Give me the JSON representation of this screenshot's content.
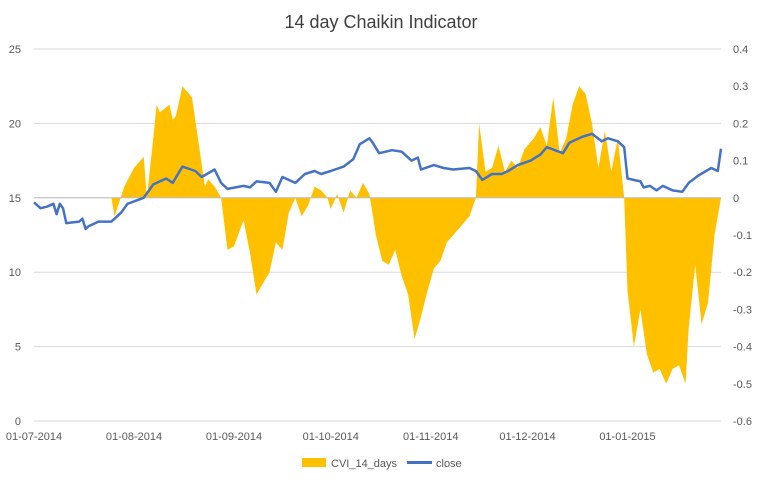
{
  "chart_data": {
    "type": "area",
    "title": "14 day Chaikin Indicator",
    "x_ticks": [
      "01-07-2014",
      "01-08-2014",
      "01-09-2014",
      "01-10-2014",
      "01-11-2014",
      "01-12-2014",
      "01-01-2015"
    ],
    "xlim": [
      "01-07-2014",
      "30-01-2015"
    ],
    "y_left": {
      "ticks": [
        0,
        5,
        10,
        15,
        20,
        25
      ],
      "ylim": [
        0,
        25
      ]
    },
    "y_right": {
      "ticks": [
        0.4,
        0.3,
        0.2,
        0.1,
        0,
        -0.1,
        -0.2,
        -0.3,
        -0.4,
        -0.5,
        -0.6
      ],
      "ylim": [
        -0.6,
        0.4
      ]
    },
    "gridlines": true,
    "legend_position": "bottom",
    "series": [
      {
        "name": "CVI_14_days",
        "type": "area",
        "axis": "right",
        "color": "#FFC000",
        "points": [
          [
            "2014-07-25",
            0
          ],
          [
            "2014-07-26",
            -0.05
          ],
          [
            "2014-07-29",
            0.03
          ],
          [
            "2014-08-01",
            0.08
          ],
          [
            "2014-08-04",
            0.11
          ],
          [
            "2014-08-05",
            0
          ],
          [
            "2014-08-07",
            0.16
          ],
          [
            "2014-08-08",
            0.25
          ],
          [
            "2014-08-09",
            0.23
          ],
          [
            "2014-08-12",
            0.25
          ],
          [
            "2014-08-13",
            0.21
          ],
          [
            "2014-08-14",
            0.22
          ],
          [
            "2014-08-16",
            0.3
          ],
          [
            "2014-08-19",
            0.27
          ],
          [
            "2014-08-21",
            0.15
          ],
          [
            "2014-08-23",
            0.03
          ],
          [
            "2014-08-24",
            0.05
          ],
          [
            "2014-08-26",
            0.03
          ],
          [
            "2014-08-28",
            0
          ],
          [
            "2014-08-30",
            -0.14
          ],
          [
            "2014-09-01",
            -0.13
          ],
          [
            "2014-09-04",
            -0.06
          ],
          [
            "2014-09-06",
            -0.15
          ],
          [
            "2014-09-08",
            -0.26
          ],
          [
            "2014-09-12",
            -0.2
          ],
          [
            "2014-09-14",
            -0.12
          ],
          [
            "2014-09-16",
            -0.14
          ],
          [
            "2014-09-18",
            -0.04
          ],
          [
            "2014-09-20",
            0
          ],
          [
            "2014-09-22",
            -0.05
          ],
          [
            "2014-09-24",
            -0.02
          ],
          [
            "2014-09-26",
            0.03
          ],
          [
            "2014-09-28",
            0.02
          ],
          [
            "2014-09-30",
            0
          ],
          [
            "2014-10-01",
            -0.03
          ],
          [
            "2014-10-03",
            0.01
          ],
          [
            "2014-10-05",
            -0.04
          ],
          [
            "2014-10-07",
            0.02
          ],
          [
            "2014-10-09",
            0
          ],
          [
            "2014-10-11",
            0.04
          ],
          [
            "2014-10-13",
            0.01
          ],
          [
            "2014-10-15",
            -0.1
          ],
          [
            "2014-10-17",
            -0.17
          ],
          [
            "2014-10-19",
            -0.18
          ],
          [
            "2014-10-21",
            -0.14
          ],
          [
            "2014-10-23",
            -0.21
          ],
          [
            "2014-10-25",
            -0.26
          ],
          [
            "2014-10-27",
            -0.38
          ],
          [
            "2014-10-29",
            -0.32
          ],
          [
            "2014-10-31",
            -0.25
          ],
          [
            "2014-11-02",
            -0.19
          ],
          [
            "2014-11-04",
            -0.17
          ],
          [
            "2014-11-06",
            -0.12
          ],
          [
            "2014-11-08",
            -0.1
          ],
          [
            "2014-11-10",
            -0.08
          ],
          [
            "2014-11-13",
            -0.05
          ],
          [
            "2014-11-15",
            0
          ],
          [
            "2014-11-16",
            0.2
          ],
          [
            "2014-11-18",
            0.07
          ],
          [
            "2014-11-20",
            0.08
          ],
          [
            "2014-11-22",
            0.14
          ],
          [
            "2014-11-24",
            0.07
          ],
          [
            "2014-11-26",
            0.1
          ],
          [
            "2014-11-28",
            0.08
          ],
          [
            "2014-11-30",
            0.13
          ],
          [
            "2014-12-03",
            0.16
          ],
          [
            "2014-12-05",
            0.19
          ],
          [
            "2014-12-07",
            0.14
          ],
          [
            "2014-12-09",
            0.27
          ],
          [
            "2014-12-11",
            0.12
          ],
          [
            "2014-12-13",
            0.16
          ],
          [
            "2014-12-15",
            0.25
          ],
          [
            "2014-12-17",
            0.3
          ],
          [
            "2014-12-19",
            0.28
          ],
          [
            "2014-12-21",
            0.2
          ],
          [
            "2014-12-23",
            0.08
          ],
          [
            "2014-12-25",
            0.18
          ],
          [
            "2014-12-27",
            0.07
          ],
          [
            "2014-12-29",
            0.16
          ],
          [
            "2014-12-31",
            0
          ],
          [
            "2015-01-01",
            -0.25
          ],
          [
            "2015-01-03",
            -0.4
          ],
          [
            "2015-01-05",
            -0.3
          ],
          [
            "2015-01-07",
            -0.42
          ],
          [
            "2015-01-09",
            -0.47
          ],
          [
            "2015-01-11",
            -0.46
          ],
          [
            "2015-01-13",
            -0.5
          ],
          [
            "2015-01-15",
            -0.46
          ],
          [
            "2015-01-17",
            -0.45
          ],
          [
            "2015-01-19",
            -0.5
          ],
          [
            "2015-01-20",
            -0.35
          ],
          [
            "2015-01-22",
            -0.18
          ],
          [
            "2015-01-24",
            -0.34
          ],
          [
            "2015-01-26",
            -0.28
          ],
          [
            "2015-01-28",
            -0.1
          ],
          [
            "2015-01-30",
            0
          ]
        ]
      },
      {
        "name": "close",
        "type": "line",
        "axis": "left",
        "color": "#4472C4",
        "points": [
          [
            "2014-07-01",
            14.7
          ],
          [
            "2014-07-03",
            14.3
          ],
          [
            "2014-07-05",
            14.4
          ],
          [
            "2014-07-07",
            14.6
          ],
          [
            "2014-07-08",
            13.9
          ],
          [
            "2014-07-09",
            14.6
          ],
          [
            "2014-07-10",
            14.3
          ],
          [
            "2014-07-11",
            13.3
          ],
          [
            "2014-07-15",
            13.4
          ],
          [
            "2014-07-16",
            13.6
          ],
          [
            "2014-07-17",
            12.9
          ],
          [
            "2014-07-18",
            13.1
          ],
          [
            "2014-07-21",
            13.4
          ],
          [
            "2014-07-25",
            13.4
          ],
          [
            "2014-07-28",
            14.0
          ],
          [
            "2014-07-30",
            14.6
          ],
          [
            "2014-08-04",
            15.0
          ],
          [
            "2014-08-07",
            15.9
          ],
          [
            "2014-08-11",
            16.3
          ],
          [
            "2014-08-13",
            16.0
          ],
          [
            "2014-08-16",
            17.1
          ],
          [
            "2014-08-20",
            16.8
          ],
          [
            "2014-08-22",
            16.4
          ],
          [
            "2014-08-26",
            16.9
          ],
          [
            "2014-08-28",
            16.0
          ],
          [
            "2014-08-30",
            15.6
          ],
          [
            "2014-09-04",
            15.8
          ],
          [
            "2014-09-06",
            15.7
          ],
          [
            "2014-09-08",
            16.1
          ],
          [
            "2014-09-12",
            16.0
          ],
          [
            "2014-09-14",
            15.4
          ],
          [
            "2014-09-16",
            16.4
          ],
          [
            "2014-09-20",
            16.0
          ],
          [
            "2014-09-23",
            16.6
          ],
          [
            "2014-09-26",
            16.8
          ],
          [
            "2014-09-28",
            16.6
          ],
          [
            "2014-10-01",
            16.8
          ],
          [
            "2014-10-05",
            17.1
          ],
          [
            "2014-10-08",
            17.6
          ],
          [
            "2014-10-10",
            18.6
          ],
          [
            "2014-10-13",
            19.0
          ],
          [
            "2014-10-14",
            18.7
          ],
          [
            "2014-10-16",
            18.0
          ],
          [
            "2014-10-20",
            18.2
          ],
          [
            "2014-10-23",
            18.1
          ],
          [
            "2014-10-26",
            17.5
          ],
          [
            "2014-10-28",
            17.7
          ],
          [
            "2014-10-29",
            16.9
          ],
          [
            "2014-11-02",
            17.2
          ],
          [
            "2014-11-05",
            17.0
          ],
          [
            "2014-11-08",
            16.9
          ],
          [
            "2014-11-13",
            17.0
          ],
          [
            "2014-11-15",
            16.8
          ],
          [
            "2014-11-17",
            16.2
          ],
          [
            "2014-11-20",
            16.6
          ],
          [
            "2014-11-23",
            16.6
          ],
          [
            "2014-11-25",
            16.8
          ],
          [
            "2014-11-28",
            17.2
          ],
          [
            "2014-12-02",
            17.5
          ],
          [
            "2014-12-05",
            17.9
          ],
          [
            "2014-12-07",
            18.4
          ],
          [
            "2014-12-12",
            18.0
          ],
          [
            "2014-12-14",
            18.7
          ],
          [
            "2014-12-18",
            19.1
          ],
          [
            "2014-12-21",
            19.3
          ],
          [
            "2014-12-24",
            18.8
          ],
          [
            "2014-12-26",
            19.0
          ],
          [
            "2014-12-29",
            18.8
          ],
          [
            "2014-12-31",
            18.4
          ],
          [
            "2015-01-01",
            16.3
          ],
          [
            "2015-01-05",
            16.1
          ],
          [
            "2015-01-06",
            15.7
          ],
          [
            "2015-01-08",
            15.8
          ],
          [
            "2015-01-10",
            15.5
          ],
          [
            "2015-01-12",
            15.8
          ],
          [
            "2015-01-15",
            15.5
          ],
          [
            "2015-01-18",
            15.4
          ],
          [
            "2015-01-20",
            16.0
          ],
          [
            "2015-01-23",
            16.5
          ],
          [
            "2015-01-27",
            17.0
          ],
          [
            "2015-01-29",
            16.8
          ],
          [
            "2015-01-30",
            18.3
          ]
        ]
      }
    ]
  }
}
